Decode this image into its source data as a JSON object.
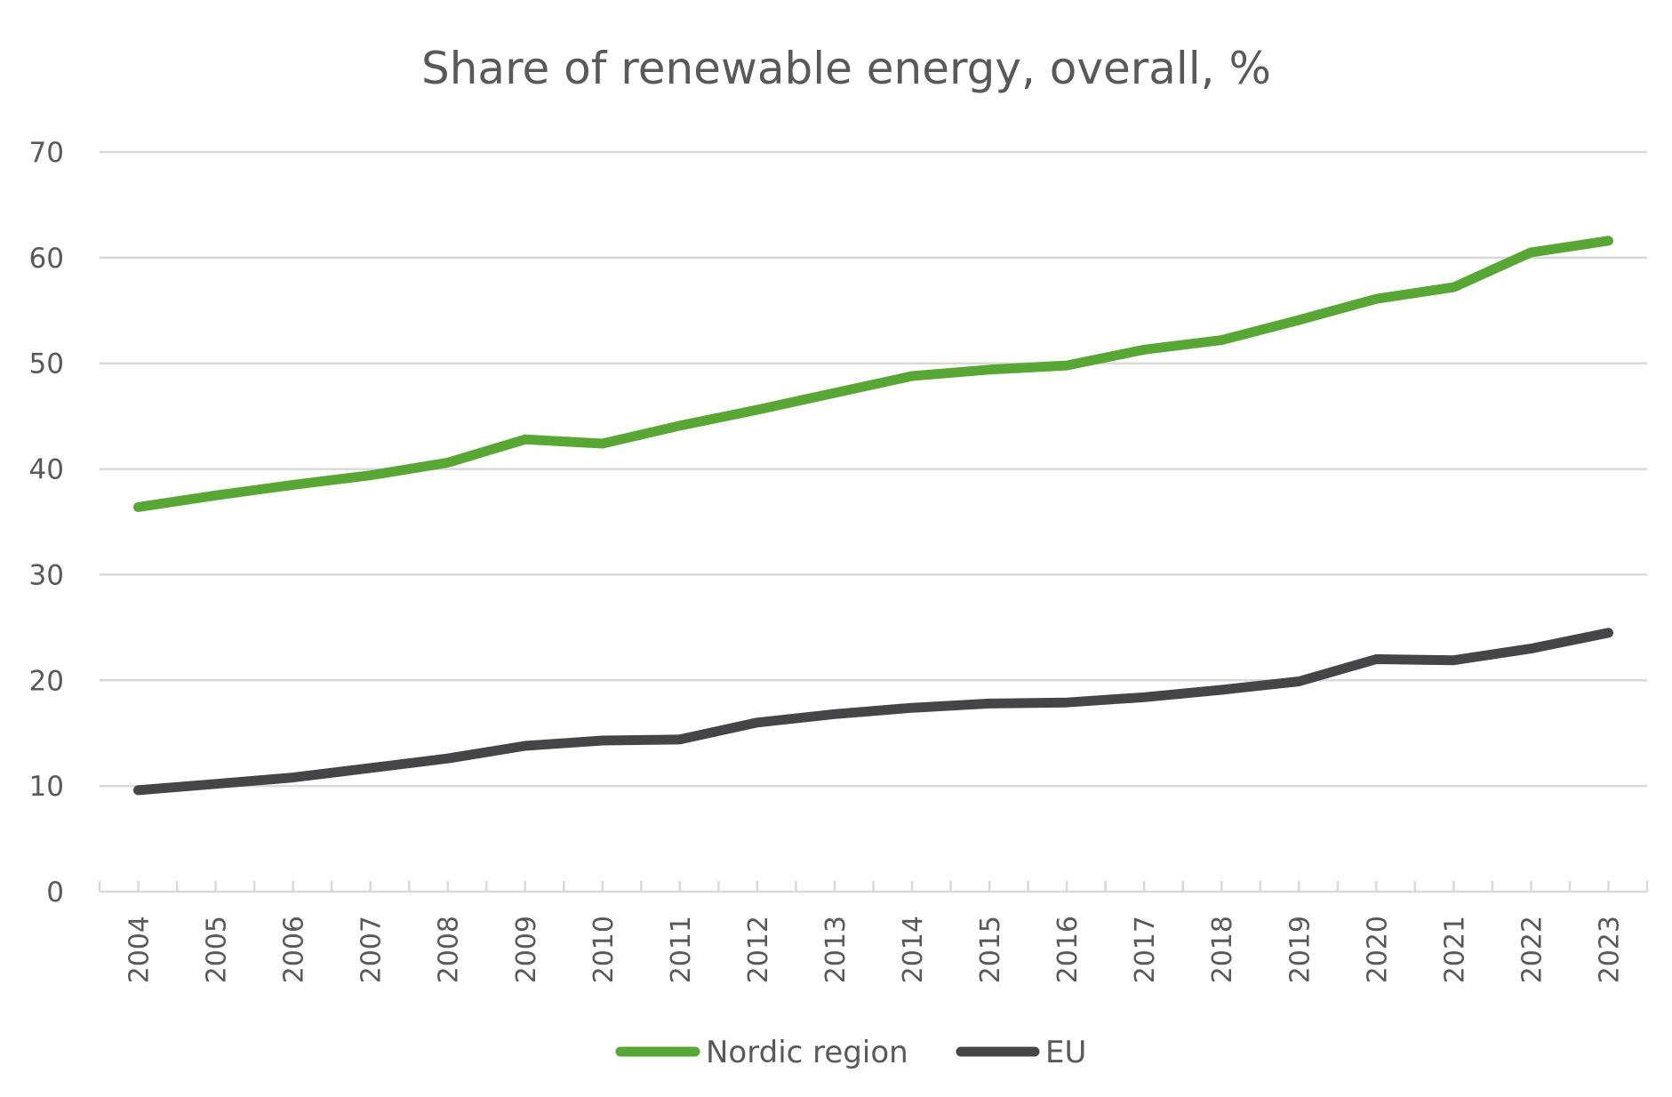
{
  "chart_data": {
    "type": "line",
    "title": "Share of renewable energy, overall, %",
    "xlabel": "",
    "ylabel": "",
    "ylim": [
      0,
      70
    ],
    "yticks": [
      "0",
      "10",
      "20",
      "30",
      "40",
      "50",
      "60",
      "70"
    ],
    "grid": true,
    "legend_position": "bottom",
    "categories": [
      "2004",
      "2005",
      "2006",
      "2007",
      "2008",
      "2009",
      "2010",
      "2011",
      "2012",
      "2013",
      "2014",
      "2015",
      "2016",
      "2017",
      "2018",
      "2019",
      "2020",
      "2021",
      "2022",
      "2023"
    ],
    "series": [
      {
        "name": "Nordic region",
        "color": "#56a832",
        "values": [
          36.4,
          37.5,
          38.5,
          39.4,
          40.6,
          42.8,
          42.4,
          44.1,
          45.6,
          47.2,
          48.8,
          49.4,
          49.8,
          51.3,
          52.2,
          54.1,
          56.1,
          57.2,
          60.5,
          61.6
        ]
      },
      {
        "name": "EU",
        "color": "#454547",
        "values": [
          9.6,
          10.2,
          10.8,
          11.7,
          12.6,
          13.8,
          14.3,
          14.4,
          16.0,
          16.8,
          17.4,
          17.8,
          17.9,
          18.4,
          19.1,
          19.9,
          22.0,
          21.9,
          23.0,
          24.5
        ]
      }
    ]
  }
}
